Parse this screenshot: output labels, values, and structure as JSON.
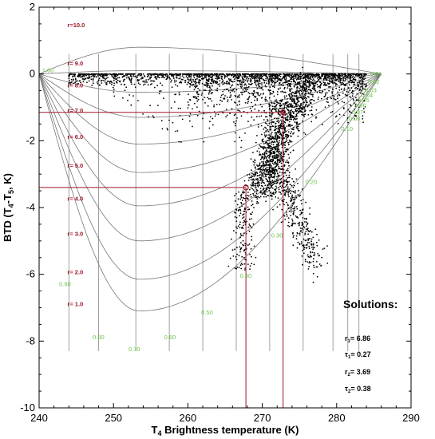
{
  "chart_data": {
    "type": "scatter",
    "title": "",
    "xlabel": {
      "prefix": "T",
      "sub": "4",
      "rest": " Brightness temperature (K)"
    },
    "ylabel": {
      "a": "BTD (T",
      "s1": "4",
      "b": "-T",
      "s2": "5",
      "c": ", K)"
    },
    "xlim": [
      240,
      290
    ],
    "ylim": [
      -10,
      2
    ],
    "xticks": [
      "240",
      "250",
      "260",
      "270",
      "280",
      "290"
    ],
    "yticks": [
      "-10",
      "-8",
      "-6",
      "-4",
      "-2",
      "0",
      "2"
    ],
    "grid": false,
    "colors": {
      "r_lines": "#a01525",
      "tau_labels": "#6cc24a",
      "curves": "#777777",
      "points": "#000000"
    },
    "r_curves": [
      {
        "label": "r=10.0",
        "r": 10.0,
        "min_btd": 0.8
      },
      {
        "label": "r= 9.0",
        "r": 9.0,
        "min_btd": 0.1
      },
      {
        "label": "r= 8.0",
        "r": 8.0,
        "min_btd": -0.55
      },
      {
        "label": "r= 7.0",
        "r": 7.0,
        "min_btd": -1.3
      },
      {
        "label": "r= 6.0",
        "r": 6.0,
        "min_btd": -2.1
      },
      {
        "label": "r= 5.0",
        "r": 5.0,
        "min_btd": -2.95
      },
      {
        "label": "r= 4.0",
        "r": 4.0,
        "min_btd": -3.95
      },
      {
        "label": "r= 3.0",
        "r": 3.0,
        "min_btd": -5.0
      },
      {
        "label": "r= 2.0",
        "r": 2.0,
        "min_btd": -6.15
      },
      {
        "label": "r= 1.0",
        "r": 1.0,
        "min_btd": -7.1
      }
    ],
    "tau_labels": [
      {
        "text": "0.01",
        "x": 284.5,
        "y": -0.05
      },
      {
        "text": "0.02",
        "x": 284.2,
        "y": -0.3
      },
      {
        "text": "0.03",
        "x": 283.8,
        "y": -0.55
      },
      {
        "text": "0.04",
        "x": 283.3,
        "y": -0.7
      },
      {
        "text": "0.05",
        "x": 282.8,
        "y": -0.85
      },
      {
        "text": "0.06",
        "x": 282.4,
        "y": -1.0
      },
      {
        "text": "0.07",
        "x": 282.0,
        "y": -1.2
      },
      {
        "text": "0.08",
        "x": 281.6,
        "y": -1.4
      },
      {
        "text": "0.10",
        "x": 280.6,
        "y": -1.7
      },
      {
        "text": "0.20",
        "x": 275.8,
        "y": -3.3
      },
      {
        "text": "0.30",
        "x": 271.2,
        "y": -4.9
      },
      {
        "text": "0.40",
        "x": 267.0,
        "y": -6.1
      },
      {
        "text": "0.50",
        "x": 261.8,
        "y": -7.2
      },
      {
        "text": "0.60",
        "x": 256.8,
        "y": -7.95
      },
      {
        "text": "0.70",
        "x": 252.0,
        "y": -8.3
      },
      {
        "text": "0.80",
        "x": 247.2,
        "y": -7.95
      },
      {
        "text": "0.90",
        "x": 242.7,
        "y": -6.35
      },
      {
        "text": "1.00",
        "x": 240.4,
        "y": 0.05
      }
    ],
    "tau_grid_x": [
      244.0,
      248.0,
      253.0,
      257.5,
      262.0,
      266.5,
      271.0,
      275.5,
      279.5,
      281.5,
      283.0
    ],
    "solutions": {
      "title": "Solutions:",
      "items": [
        {
          "sym": "r",
          "sub": "1",
          "value": "= 6.86",
          "x": 272.8,
          "y": -1.15
        },
        {
          "sym": "τ",
          "sub": "1",
          "value": "= 0.27",
          "x": 272.8,
          "y": -1.15
        },
        {
          "sym": "r",
          "sub": "2",
          "value": "= 3.69",
          "x": 267.8,
          "y": -3.4
        },
        {
          "sym": "τ",
          "sub": "2",
          "value": "= 0.38",
          "x": 267.8,
          "y": -3.4
        }
      ]
    },
    "solution_points": [
      {
        "name": "solution-1",
        "x": 272.8,
        "y": -1.15
      },
      {
        "name": "solution-2",
        "x": 267.8,
        "y": -3.4
      }
    ]
  }
}
